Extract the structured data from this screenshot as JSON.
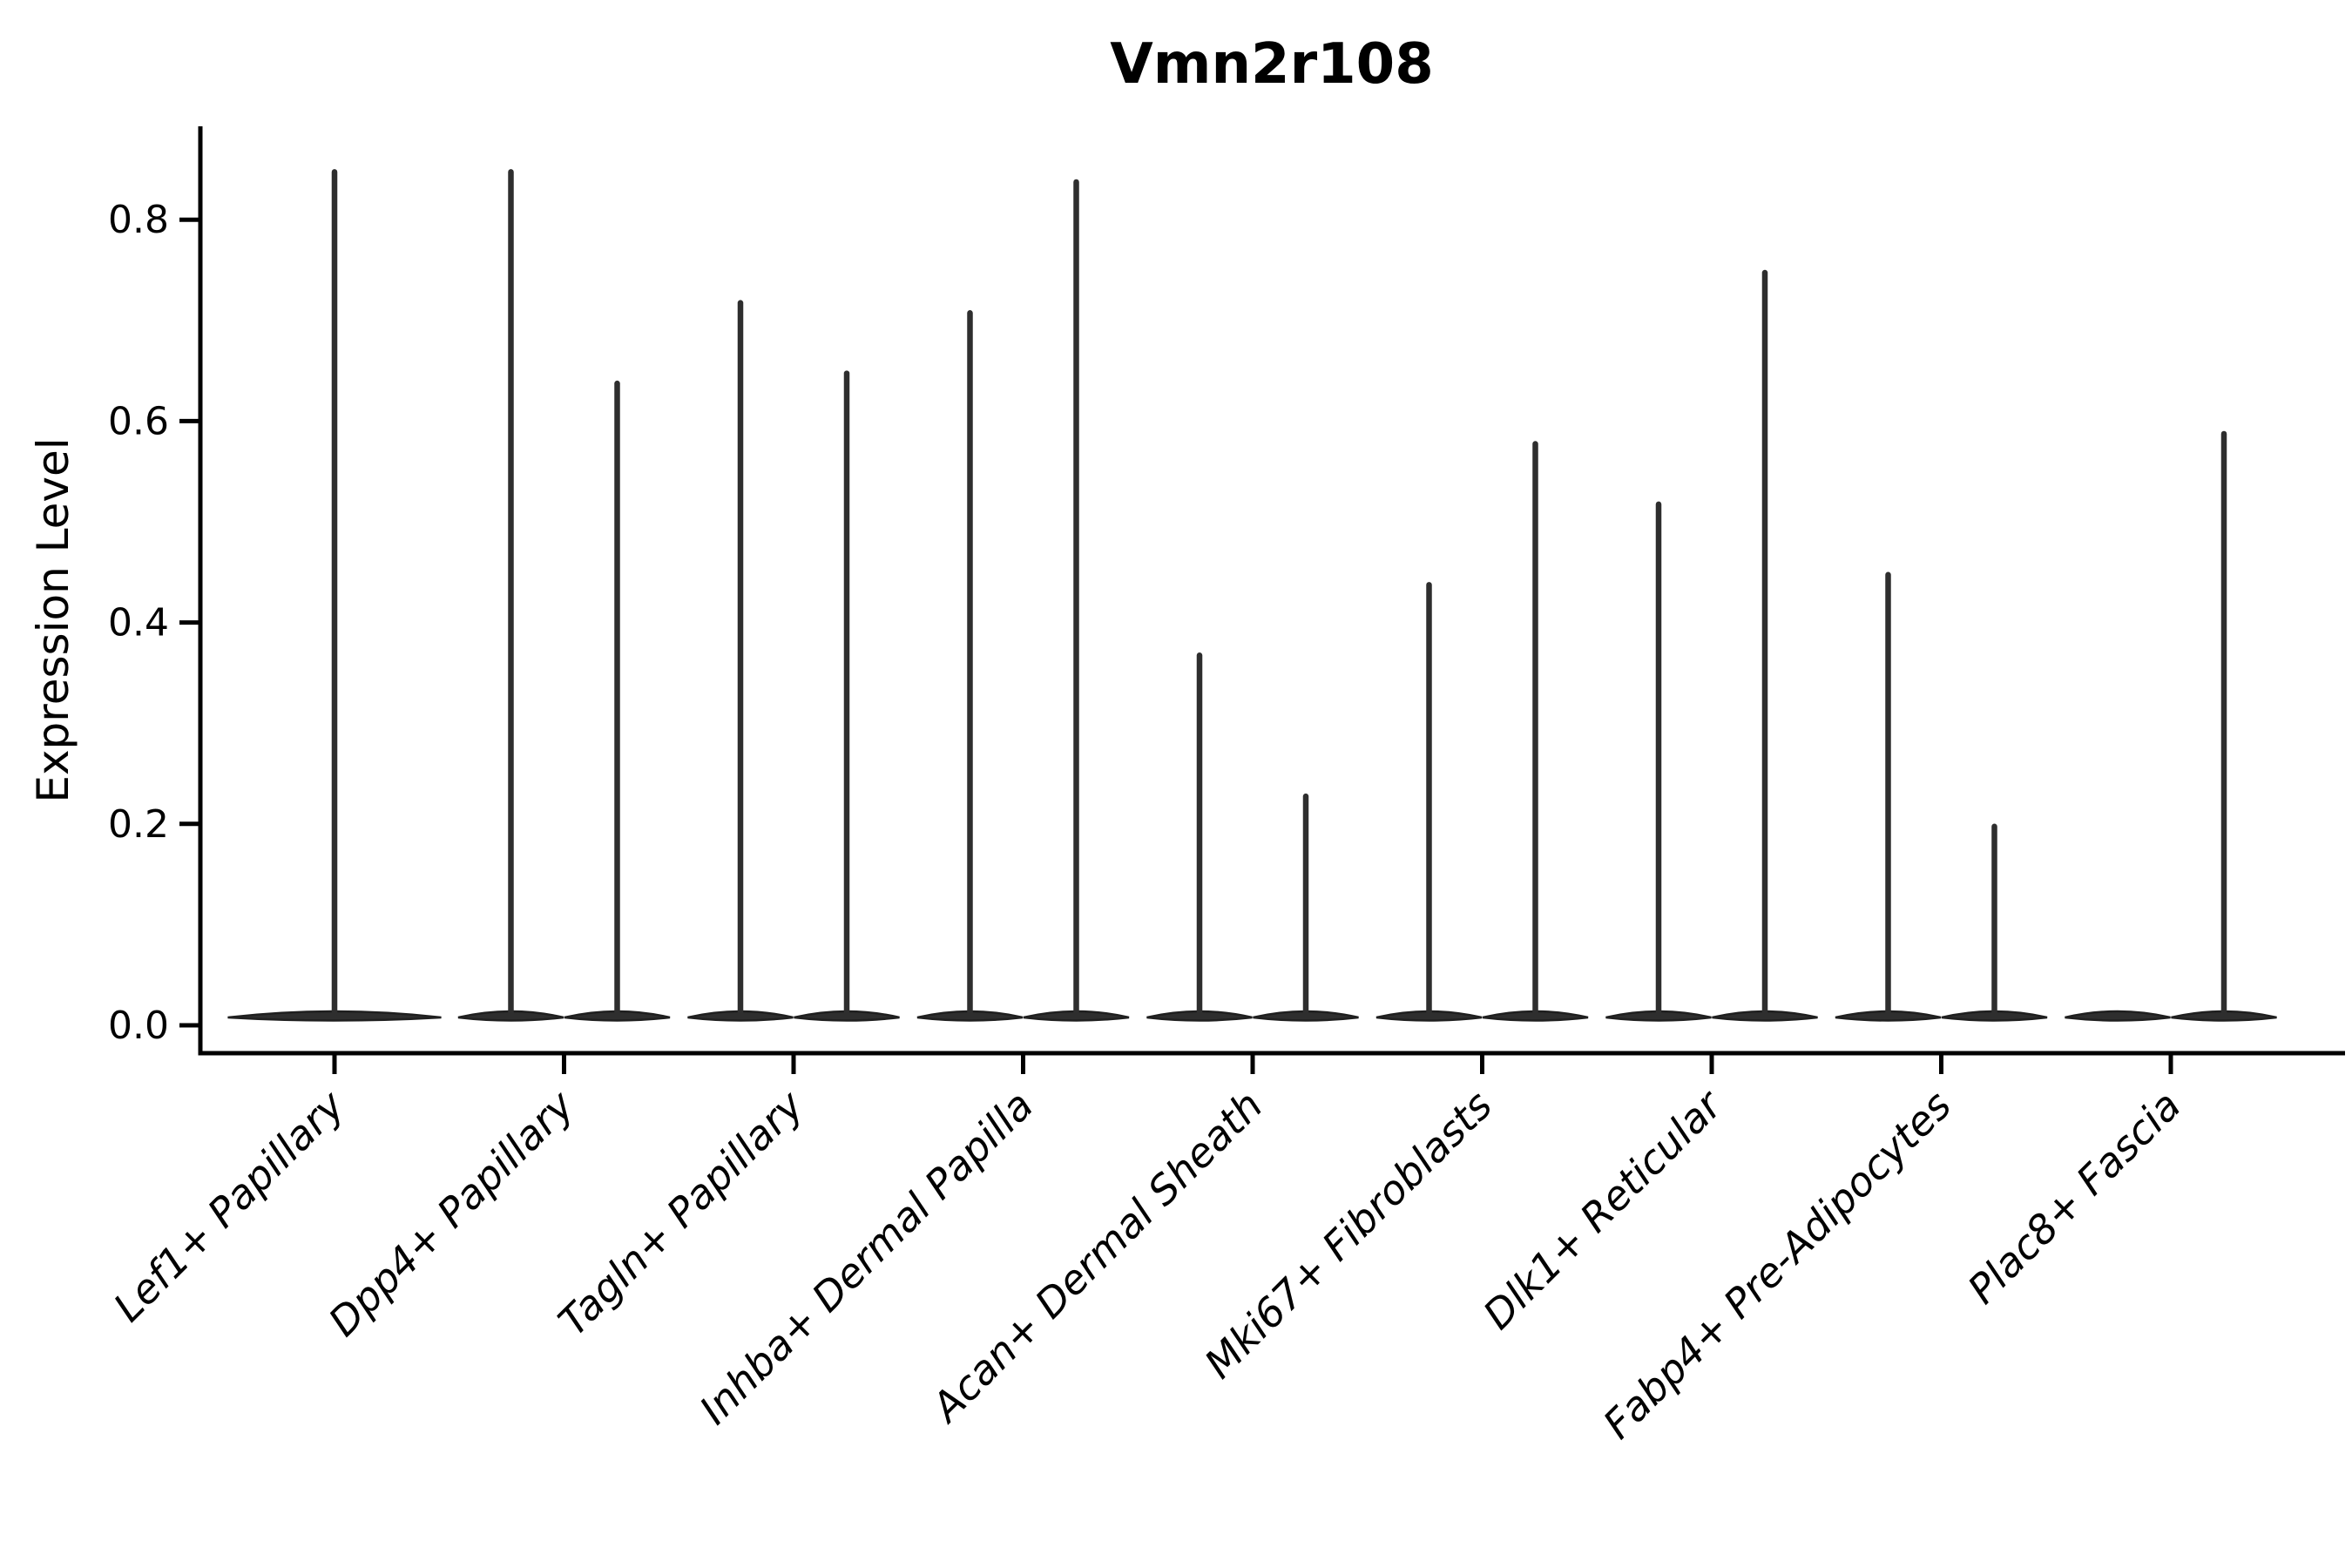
{
  "chart_data": {
    "type": "violin",
    "title": "Vmn2r108",
    "ylabel": "Expression Level",
    "xlabel": "",
    "yticks": [
      0.0,
      0.2,
      0.4,
      0.6,
      0.8
    ],
    "ytick_labels": [
      "0.0",
      "0.2",
      "0.4",
      "0.6",
      "0.8"
    ],
    "ylim": [
      -0.03,
      0.89
    ],
    "categories": [
      "Lef1+ Papillary",
      "Dpp4+ Papillary",
      "Tagln+ Papillary",
      "Inhba+ Dermal Papilla",
      "Acan+ Dermal Sheath",
      "Mki67+ Fibroblasts",
      "Dlk1+ Reticular",
      "Fabp4+ Pre-Adipocytes",
      "Plac8+ Fascia"
    ],
    "series_note": "Each category shows narrow-spike violins (expression concentrated at 0 with thin tail to max). Categories with two half-width violins list left/right parts; max = top of spike (Expression Level).",
    "violins": [
      {
        "category": "Lef1+ Papillary",
        "parts": [
          {
            "span": "full",
            "max": 0.85
          }
        ]
      },
      {
        "category": "Dpp4+ Papillary",
        "parts": [
          {
            "span": "left",
            "max": 0.85
          },
          {
            "span": "right",
            "max": 0.64
          }
        ]
      },
      {
        "category": "Tagln+ Papillary",
        "parts": [
          {
            "span": "left",
            "max": 0.72
          },
          {
            "span": "right",
            "max": 0.65
          }
        ]
      },
      {
        "category": "Inhba+ Dermal Papilla",
        "parts": [
          {
            "span": "left",
            "max": 0.71
          },
          {
            "span": "right",
            "max": 0.84
          }
        ]
      },
      {
        "category": "Acan+ Dermal Sheath",
        "parts": [
          {
            "span": "left",
            "max": 0.37
          },
          {
            "span": "right",
            "max": 0.23
          }
        ]
      },
      {
        "category": "Mki67+ Fibroblasts",
        "parts": [
          {
            "span": "left",
            "max": 0.44
          },
          {
            "span": "right",
            "max": 0.58
          }
        ]
      },
      {
        "category": "Dlk1+ Reticular",
        "parts": [
          {
            "span": "left",
            "max": 0.52
          },
          {
            "span": "right",
            "max": 0.75
          }
        ]
      },
      {
        "category": "Fabp4+ Pre-Adipocytes",
        "parts": [
          {
            "span": "left",
            "max": 0.45
          },
          {
            "span": "right",
            "max": 0.2
          }
        ]
      },
      {
        "category": "Plac8+ Fascia",
        "parts": [
          {
            "span": "left",
            "max": 0.0
          },
          {
            "span": "right",
            "max": 0.59
          }
        ]
      }
    ],
    "colors": {
      "violin_fill": "#2e2e2e",
      "violin_edge": "#1f1f1f",
      "axis": "#000000",
      "text": "#000000",
      "background": "#ffffff"
    },
    "layout_hints": {
      "grid": false,
      "legend": false,
      "x_label_rotation_deg": 45,
      "spines": [
        "left",
        "bottom"
      ]
    }
  }
}
